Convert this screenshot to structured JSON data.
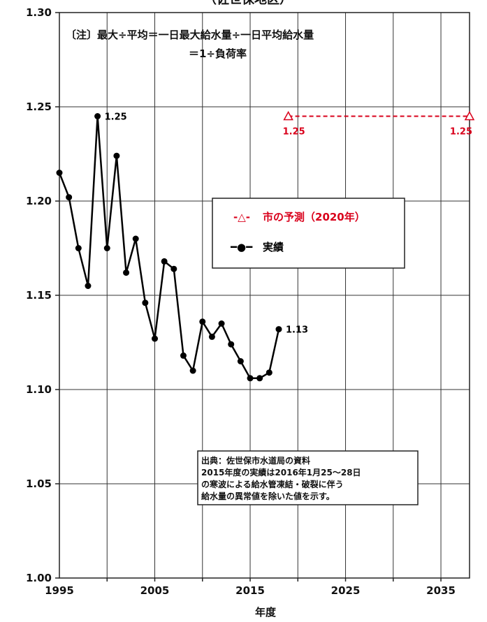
{
  "chart_data": {
    "type": "line",
    "title": "（佐世保地区）",
    "xlabel": "年度",
    "ylabel": "",
    "xlim": [
      1995,
      2038
    ],
    "ylim": [
      1.0,
      1.3
    ],
    "x_ticks": [
      "1995",
      "2005",
      "2015",
      "2025",
      "2035"
    ],
    "y_ticks": [
      "1.00",
      "1.05",
      "1.10",
      "1.15",
      "1.20",
      "1.25",
      "1.30"
    ],
    "grid": true,
    "note": [
      "〔注〕最大÷平均＝一日最大給水量÷一日平均給水量",
      "＝1÷負荷率"
    ],
    "series": [
      {
        "name": "実績",
        "color": "#000000",
        "marker": "circle",
        "x": [
          1995,
          1996,
          1997,
          1998,
          1999,
          2000,
          2001,
          2002,
          2003,
          2004,
          2005,
          2006,
          2007,
          2008,
          2009,
          2010,
          2011,
          2012,
          2013,
          2014,
          2015,
          2016,
          2017,
          2018
        ],
        "values": [
          1.215,
          1.202,
          1.175,
          1.155,
          1.245,
          1.175,
          1.224,
          1.162,
          1.18,
          1.146,
          1.127,
          1.168,
          1.164,
          1.118,
          1.11,
          1.136,
          1.128,
          1.135,
          1.124,
          1.115,
          1.106,
          1.106,
          1.109,
          1.132
        ]
      },
      {
        "name": "市の予測（2020年）",
        "color": "#d9001b",
        "marker": "triangle",
        "dashed": true,
        "x": [
          2019,
          2038
        ],
        "values": [
          1.245,
          1.245
        ]
      }
    ],
    "annotations": [
      {
        "series": 0,
        "index": 4,
        "text": "1.25",
        "color": "#000000"
      },
      {
        "series": 0,
        "index": 23,
        "text": "1.13",
        "color": "#000000"
      },
      {
        "series": 1,
        "index": 0,
        "text": "1.25",
        "color": "#d9001b"
      },
      {
        "series": 1,
        "index": 1,
        "text": "1.25",
        "color": "#d9001b"
      }
    ],
    "legend": {
      "position": "center-right",
      "items": [
        {
          "series": 1,
          "symbol": "-△-",
          "label": "市の予測（2020年）"
        },
        {
          "series": 0,
          "symbol": "━●━",
          "label": "実績"
        }
      ]
    },
    "source_note": [
      "出典：佐世保市水道局の資料",
      "2015年度の実績は2016年1月25～28日",
      "の寒波による給水管凍結・破裂に伴う",
      "給水量の異常値を除いた値を示す。"
    ]
  }
}
